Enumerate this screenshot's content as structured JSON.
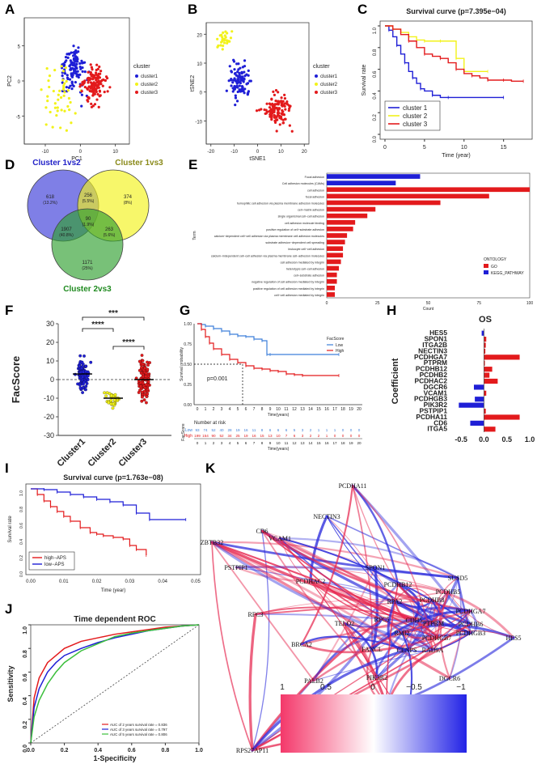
{
  "panels": {
    "a": {
      "label": "A"
    },
    "b": {
      "label": "B"
    },
    "c": {
      "label": "C"
    },
    "d": {
      "label": "D"
    },
    "e": {
      "label": "E"
    },
    "f": {
      "label": "F"
    },
    "g": {
      "label": "G"
    },
    "h": {
      "label": "H"
    },
    "i": {
      "label": "I"
    },
    "j": {
      "label": "J"
    },
    "k": {
      "label": "K"
    }
  },
  "colors": {
    "blue": "#1f1fd6",
    "yellow": "#f2f21a",
    "red": "#e31a1c"
  },
  "chart_data": [
    {
      "id": "A",
      "type": "scatter",
      "title": "",
      "xlabel": "PC1",
      "ylabel": "PC2",
      "xticks": [
        "-10",
        "0",
        "10"
      ],
      "yticks": [
        "-5",
        "0",
        "5"
      ],
      "legend_title": "cluster",
      "legend": [
        "cluster1",
        "cluster2",
        "cluster3"
      ]
    },
    {
      "id": "B",
      "type": "scatter",
      "title": "",
      "xlabel": "tSNE1",
      "ylabel": "tSNE2",
      "xticks": [
        "-20",
        "-10",
        "0",
        "10",
        "20"
      ],
      "yticks": [
        "-10",
        "0",
        "10",
        "20"
      ],
      "legend_title": "cluster",
      "legend": [
        "cluster1",
        "cluster2",
        "cluster3"
      ]
    },
    {
      "id": "C",
      "type": "line",
      "title": "Survival curve (p=7.395e−04)",
      "xlabel": "Time (year)",
      "ylabel": "Survival rate",
      "xticks": [
        "0",
        "5",
        "10",
        "15"
      ],
      "yticks": [
        "0.0",
        "0.2",
        "0.4",
        "0.6",
        "0.8",
        "1.0"
      ],
      "xlim": [
        0,
        18
      ],
      "ylim": [
        0,
        1
      ],
      "series": [
        {
          "name": "cluster 1",
          "color": "#1f1fd6",
          "x": [
            0,
            0.5,
            1,
            1.5,
            2,
            2.5,
            3,
            3.5,
            4,
            4.5,
            5,
            6,
            7,
            8,
            9,
            15
          ],
          "y": [
            1,
            0.96,
            0.9,
            0.82,
            0.74,
            0.66,
            0.58,
            0.52,
            0.47,
            0.42,
            0.4,
            0.36,
            0.34,
            0.34,
            0.34,
            0.34
          ]
        },
        {
          "name": "cluster 2",
          "color": "#f2f21a",
          "x": [
            0,
            1,
            2,
            3,
            4,
            5,
            6,
            7,
            8,
            9,
            10,
            13
          ],
          "y": [
            1,
            0.97,
            0.94,
            0.9,
            0.87,
            0.86,
            0.86,
            0.86,
            0.86,
            0.7,
            0.58,
            0.58
          ]
        },
        {
          "name": "cluster 3",
          "color": "#e31a1c",
          "x": [
            0,
            1,
            2,
            3,
            4,
            5,
            6,
            7,
            8,
            9,
            10,
            11,
            12,
            13,
            14,
            15,
            16,
            17.5
          ],
          "y": [
            1,
            0.97,
            0.92,
            0.86,
            0.8,
            0.74,
            0.72,
            0.7,
            0.66,
            0.6,
            0.56,
            0.54,
            0.52,
            0.5,
            0.5,
            0.5,
            0.49,
            0.49
          ]
        }
      ]
    },
    {
      "id": "D",
      "type": "venn",
      "sets": [
        {
          "name": "Cluster 1vs2",
          "color": "#3b3bd8"
        },
        {
          "name": "Cluster 1vs3",
          "color": "#f2f21a"
        },
        {
          "name": "Cluster 2vs3",
          "color": "#2fa02f"
        }
      ],
      "regions": [
        {
          "value": "618",
          "pct": "(13.2%)",
          "region": "only1"
        },
        {
          "value": "374",
          "pct": "(8%)",
          "region": "only2"
        },
        {
          "value": "1171",
          "pct": "(25%)",
          "region": "only3"
        },
        {
          "value": "256",
          "pct": "(5.5%)",
          "region": "12"
        },
        {
          "value": "1907",
          "pct": "(40.8%)",
          "region": "13"
        },
        {
          "value": "263",
          "pct": "(5.6%)",
          "region": "23"
        },
        {
          "value": "90",
          "pct": "(1.9%)",
          "region": "123"
        }
      ]
    },
    {
      "id": "E",
      "type": "bar",
      "orientation": "horizontal",
      "xlabel": "Count",
      "ylabel": "Term",
      "xlim": [
        0,
        100
      ],
      "xticks": [
        "0",
        "25",
        "50",
        "75",
        "100"
      ],
      "legend_title": "ONTOLOGY",
      "legend": [
        {
          "name": "GO",
          "color": "#e31a1c"
        },
        {
          "name": "KEGG_PATHWAY",
          "color": "#1f1fd6"
        }
      ],
      "categories": [
        "Focal adhesion",
        "Cell adhesion molecules (CAMs)",
        "cell adhesion",
        "focal adhesion",
        "homophilic cell adhesion via plasma membrane adhesion molecules",
        "cell−matrix adhesion",
        "single organismal cell−cell adhesion",
        "cell adhesion molecule binding",
        "positive regulation of cell−substrate adhesion",
        "calcium−dependent cell−cell adhesion via plasma membrane cell adhesion molecules",
        "substrate adhesion−dependent cell spreading",
        "leukocyte cell−cell adhesion",
        "calcium−independent cell−cell adhesion via plasma membrane cell−adhesion molecules",
        "cell adhesion mediated by integrin",
        "heterotypic cell−cell adhesion",
        "cell−substrate adhesion",
        "negative regulation of cell adhesion mediated by integrin",
        "positive regulation of cell adhesion mediated by integrin",
        "cell−cell adhesion mediated by integrin"
      ],
      "values": [
        46,
        34,
        100,
        80,
        56,
        24,
        20,
        14,
        13,
        10,
        9,
        8,
        8,
        7,
        6,
        5,
        5,
        4,
        4
      ],
      "groups": [
        "KEGG",
        "KEGG",
        "GO",
        "GO",
        "GO",
        "GO",
        "GO",
        "GO",
        "GO",
        "GO",
        "GO",
        "GO",
        "GO",
        "GO",
        "GO",
        "GO",
        "GO",
        "GO",
        "GO"
      ]
    },
    {
      "id": "F",
      "type": "scatter",
      "title": "",
      "xlabel": "",
      "ylabel": "FacScore",
      "ylim": [
        -30,
        30
      ],
      "yticks": [
        "-30",
        "-20",
        "-10",
        "0",
        "10",
        "20",
        "30"
      ],
      "categories": [
        "Cluster1",
        "Cluster2",
        "Cluster3"
      ],
      "medians": [
        3,
        -10,
        0
      ],
      "significance": [
        {
          "pair": "Cluster1-Cluster3",
          "label": "***"
        },
        {
          "pair": "Cluster1-Cluster2",
          "label": "****"
        },
        {
          "pair": "Cluster2-Cluster3",
          "label": "****"
        }
      ]
    },
    {
      "id": "G",
      "type": "line",
      "xlabel": "Time(years)",
      "ylabel": "Survival probability",
      "xlim": [
        0,
        20
      ],
      "ylim": [
        0,
        1
      ],
      "xticks": [
        "0",
        "1",
        "2",
        "3",
        "4",
        "5",
        "6",
        "7",
        "8",
        "9",
        "10",
        "11",
        "12",
        "13",
        "14",
        "15",
        "16",
        "17",
        "18",
        "19",
        "20"
      ],
      "yticks": [
        "0.00",
        "0.25",
        "0.50",
        "0.75",
        "1.00"
      ],
      "legend_title": "FacScore",
      "legend": [
        "Low",
        "High"
      ],
      "annotation": "p=0.001",
      "series": [
        {
          "name": "Low",
          "color": "#3d7fd9",
          "x": [
            0,
            0.5,
            1,
            2,
            3,
            4,
            5,
            6,
            7,
            8,
            8.6,
            9,
            17.5
          ],
          "y": [
            1,
            0.99,
            0.97,
            0.94,
            0.91,
            0.87,
            0.85,
            0.84,
            0.81,
            0.79,
            0.62,
            0.62,
            0.62
          ]
        },
        {
          "name": "High",
          "color": "#e31a1c",
          "x": [
            0,
            0.5,
            1,
            1.5,
            2,
            3,
            4,
            5,
            6,
            7,
            8,
            9,
            10,
            11,
            12,
            13,
            17.5
          ],
          "y": [
            1,
            0.93,
            0.84,
            0.76,
            0.69,
            0.62,
            0.56,
            0.52,
            0.48,
            0.45,
            0.44,
            0.42,
            0.41,
            0.38,
            0.37,
            0.36,
            0.36
          ]
        }
      ],
      "risk_table": {
        "title": "Number at risk",
        "rows": [
          {
            "name": "Low",
            "color": "#3d7fd9",
            "values": [
              "93",
              "74",
              "52",
              "40",
              "28",
              "19",
              "16",
              "11",
              "8",
              "6",
              "6",
              "6",
              "5",
              "3",
              "2",
              "1",
              "1",
              "1",
              "0",
              "0",
              "0"
            ]
          },
          {
            "name": "High",
            "color": "#e31a1c",
            "values": [
              "199",
              "154",
              "90",
              "52",
              "34",
              "25",
              "19",
              "16",
              "15",
              "13",
              "10",
              "7",
              "6",
              "3",
              "2",
              "2",
              "1",
              "0",
              "0",
              "0",
              "0"
            ]
          }
        ],
        "xlabel": "Time(years)",
        "ylabel": "FacScore"
      }
    },
    {
      "id": "H",
      "type": "bar",
      "orientation": "horizontal",
      "title": "OS",
      "ylabel": "Coefficient",
      "xticks": [
        "-0.5",
        "0.0",
        "0.5",
        "1.0"
      ],
      "xlim": [
        -0.75,
        1.0
      ],
      "categories": [
        "HES5",
        "SPON1",
        "ITGA2B",
        "NECTIN3",
        "PCDHGA7",
        "PTPRM",
        "PCDHB12",
        "PCDHB2",
        "PCDHAC2",
        "DGCR6",
        "VCAM1",
        "PCDHGB3",
        "PIK3R2",
        "PSTPIP1",
        "PCDHA11",
        "CD6",
        "ITGA5"
      ],
      "values": [
        -0.05,
        0.05,
        0.04,
        0.03,
        0.78,
        0.02,
        0.18,
        0.12,
        0.3,
        -0.22,
        0.05,
        -0.2,
        -0.55,
        0.04,
        0.78,
        -0.3,
        0.25
      ]
    },
    {
      "id": "I",
      "type": "line",
      "title": "Survival curve (p=1.763e−08)",
      "xlabel": "Time (year)",
      "ylabel": "Survival rate",
      "xlim": [
        0,
        0.05
      ],
      "ylim": [
        0,
        1
      ],
      "xticks": [
        "0.00",
        "0.01",
        "0.02",
        "0.03",
        "0.04",
        "0.05"
      ],
      "yticks": [
        "0.0",
        "0.2",
        "0.4",
        "0.6",
        "0.8",
        "1.0"
      ],
      "series": [
        {
          "name": "high−APS",
          "color": "#e31a1c",
          "x": [
            0,
            0.002,
            0.004,
            0.006,
            0.008,
            0.01,
            0.012,
            0.015,
            0.018,
            0.02,
            0.022,
            0.025,
            0.028,
            0.03,
            0.032,
            0.035
          ],
          "y": [
            1,
            0.93,
            0.85,
            0.78,
            0.72,
            0.66,
            0.6,
            0.52,
            0.46,
            0.44,
            0.42,
            0.4,
            0.38,
            0.3,
            0.25,
            0.18
          ]
        },
        {
          "name": "low−APS",
          "color": "#1f1fd6",
          "x": [
            0,
            0.004,
            0.008,
            0.012,
            0.016,
            0.02,
            0.024,
            0.028,
            0.032,
            0.036,
            0.047
          ],
          "y": [
            1,
            0.99,
            0.96,
            0.93,
            0.9,
            0.87,
            0.84,
            0.8,
            0.7,
            0.62,
            0.62
          ]
        }
      ]
    },
    {
      "id": "J",
      "type": "line",
      "title": "Time dependent ROC",
      "xlabel": "1-Specificity",
      "ylabel": "Sensitivity",
      "xlim": [
        0,
        1
      ],
      "ylim": [
        0,
        1
      ],
      "xticks": [
        "0.0",
        "0.2",
        "0.4",
        "0.6",
        "0.8",
        "1.0"
      ],
      "yticks": [
        "0.0",
        "0.2",
        "0.4",
        "0.6",
        "0.8",
        "1.0"
      ],
      "series": [
        {
          "name": "AUC of 2 years survival rate = 0.836",
          "color": "#e31a1c",
          "x": [
            0,
            0.02,
            0.05,
            0.1,
            0.15,
            0.2,
            0.3,
            0.4,
            0.5,
            0.6,
            0.7,
            0.8,
            0.9,
            1
          ],
          "y": [
            0,
            0.38,
            0.55,
            0.68,
            0.74,
            0.8,
            0.86,
            0.89,
            0.92,
            0.94,
            0.96,
            0.98,
            0.99,
            1
          ]
        },
        {
          "name": "AUC of 3 years survival rate = 0.797",
          "color": "#1f1fd6",
          "x": [
            0,
            0.02,
            0.05,
            0.1,
            0.15,
            0.2,
            0.3,
            0.4,
            0.5,
            0.6,
            0.7,
            0.8,
            0.9,
            1
          ],
          "y": [
            0,
            0.3,
            0.46,
            0.6,
            0.68,
            0.74,
            0.8,
            0.85,
            0.89,
            0.92,
            0.95,
            0.97,
            0.99,
            1
          ]
        },
        {
          "name": "AUC of 5 years survival rate = 0.806",
          "color": "#3cbf3c",
          "x": [
            0,
            0.02,
            0.05,
            0.1,
            0.15,
            0.2,
            0.3,
            0.4,
            0.5,
            0.6,
            0.7,
            0.8,
            0.9,
            1
          ],
          "y": [
            0,
            0.22,
            0.36,
            0.5,
            0.6,
            0.68,
            0.78,
            0.84,
            0.9,
            0.93,
            0.95,
            0.97,
            0.99,
            1
          ]
        }
      ]
    },
    {
      "id": "K",
      "type": "network",
      "nodes": [
        "PCDHA11",
        "NECTIN3",
        "CD6",
        "VCAM1",
        "ZBTB32",
        "PSTPIP1",
        "PCDHAC2",
        "SPON1",
        "SUSD5",
        "PCDHB12",
        "PCDHB5",
        "PCDHB8",
        "RPA2",
        "PCDHGA7",
        "RFC5",
        "CDH5",
        "PTPRM",
        "PCDHB6",
        "PCDHGB3",
        "HES5",
        "TELO2",
        "RFC3",
        "RMI2",
        "PCDHGB7",
        "BRCA2",
        "FANCL",
        "CENPS",
        "RAD9A",
        "PALB2",
        "PIK3R2",
        "DGCR6",
        "ITGA2B",
        "ITGA5",
        "RPS27AP11"
      ],
      "scale_labels": [
        "1",
        "0.5",
        "0",
        "−0.5",
        "−1"
      ]
    }
  ]
}
